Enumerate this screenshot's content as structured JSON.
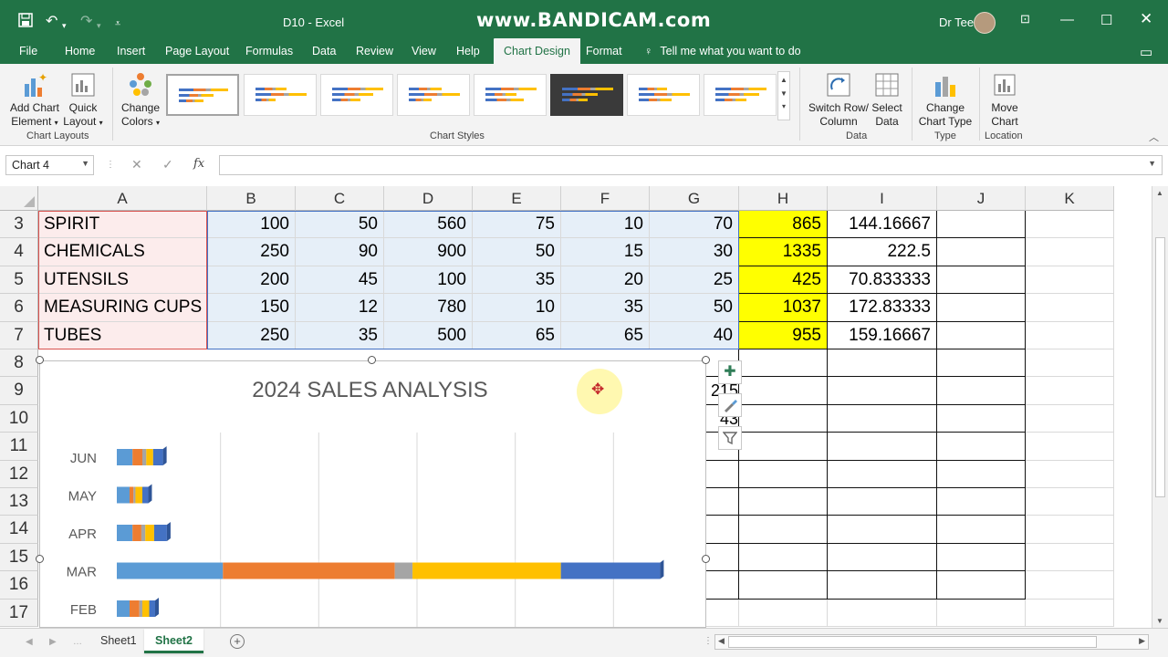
{
  "titlebar": {
    "title": "D10  -  Excel",
    "watermark": "www.BANDICAM.com",
    "user": "Dr Tee",
    "icons": [
      "save-icon",
      "undo-icon",
      "redo-icon",
      "customize-qat-icon",
      "ribbon-display-icon",
      "minimize-icon",
      "maximize-icon",
      "close-icon"
    ]
  },
  "tabs": {
    "items": [
      "File",
      "Home",
      "Insert",
      "Page Layout",
      "Formulas",
      "Data",
      "Review",
      "View",
      "Help",
      "Chart Design",
      "Format"
    ],
    "active": "Chart Design",
    "tell_me": "Tell me what you want to do"
  },
  "ribbon": {
    "add_chart_element": [
      "Add Chart",
      "Element"
    ],
    "quick_layout": [
      "Quick",
      "Layout"
    ],
    "group_chart_layouts": "Chart Layouts",
    "change_colors": [
      "Change",
      "Colors"
    ],
    "group_chart_styles": "Chart Styles",
    "switch_row_column": [
      "Switch Row/",
      "Column"
    ],
    "select_data": [
      "Select",
      "Data"
    ],
    "group_data": "Data",
    "change_chart_type": [
      "Change",
      "Chart Type"
    ],
    "group_type": "Type",
    "move_chart": [
      "Move",
      "Chart"
    ],
    "group_location": "Location",
    "style_count": 8,
    "selected_style": 1,
    "dark_style": 6
  },
  "formula_bar": {
    "name_box": "Chart 4",
    "fx": "fx",
    "value": ""
  },
  "sheet": {
    "columns": [
      "A",
      "B",
      "C",
      "D",
      "E",
      "F",
      "G",
      "H",
      "I",
      "J",
      "K"
    ],
    "row_numbers": [
      "3",
      "4",
      "5",
      "6",
      "7",
      "8",
      "9",
      "10",
      "11",
      "12",
      "13",
      "14",
      "15",
      "16",
      "17"
    ],
    "rows": [
      {
        "A": "SPIRIT",
        "B": "100",
        "C": "50",
        "D": "560",
        "E": "75",
        "F": "10",
        "G": "70",
        "H": "865",
        "I": "144.16667"
      },
      {
        "A": "CHEMICALS",
        "B": "250",
        "C": "90",
        "D": "900",
        "E": "50",
        "F": "15",
        "G": "30",
        "H": "1335",
        "I": "222.5"
      },
      {
        "A": "UTENSILS",
        "B": "200",
        "C": "45",
        "D": "100",
        "E": "35",
        "F": "20",
        "G": "25",
        "H": "425",
        "I": "70.833333"
      },
      {
        "A": "MEASURING CUPS",
        "B": "150",
        "C": "12",
        "D": "780",
        "E": "10",
        "F": "35",
        "G": "50",
        "H": "1037",
        "I": "172.83333"
      },
      {
        "A": "TUBES",
        "B": "250",
        "C": "35",
        "D": "500",
        "E": "65",
        "F": "65",
        "G": "40",
        "H": "955",
        "I": "159.16667"
      }
    ],
    "partial_cells": {
      "G9": "215",
      "G10": "43"
    }
  },
  "chart": {
    "title": "2024 SALES ANALYSIS",
    "tool_icons": [
      "chart-elements-icon",
      "chart-styles-icon",
      "chart-filters-icon"
    ]
  },
  "chart_data": {
    "type": "bar",
    "orientation": "horizontal",
    "stacked": true,
    "title": "2024 SALES ANALYSIS",
    "categories": [
      "JUN",
      "MAY",
      "APR",
      "MAR",
      "FEB"
    ],
    "colors": [
      "#5b9bd5",
      "#ed7d31",
      "#a5a5a5",
      "#ffc000",
      "#4472c4"
    ],
    "series": [
      {
        "values": [
          16,
          13,
          16,
          108,
          13
        ]
      },
      {
        "values": [
          10,
          4,
          9,
          175,
          10
        ]
      },
      {
        "values": [
          4,
          2,
          4,
          18,
          3
        ]
      },
      {
        "values": [
          7,
          7,
          9,
          151,
          7
        ]
      },
      {
        "values": [
          10,
          6,
          13,
          101,
          6
        ]
      }
    ],
    "xlim": [
      0,
      600
    ],
    "gridlines": "vertical",
    "legend": "none"
  },
  "sheet_tabs": {
    "items": [
      "Sheet1",
      "Sheet2"
    ],
    "active": "Sheet2",
    "add_label": "+"
  }
}
